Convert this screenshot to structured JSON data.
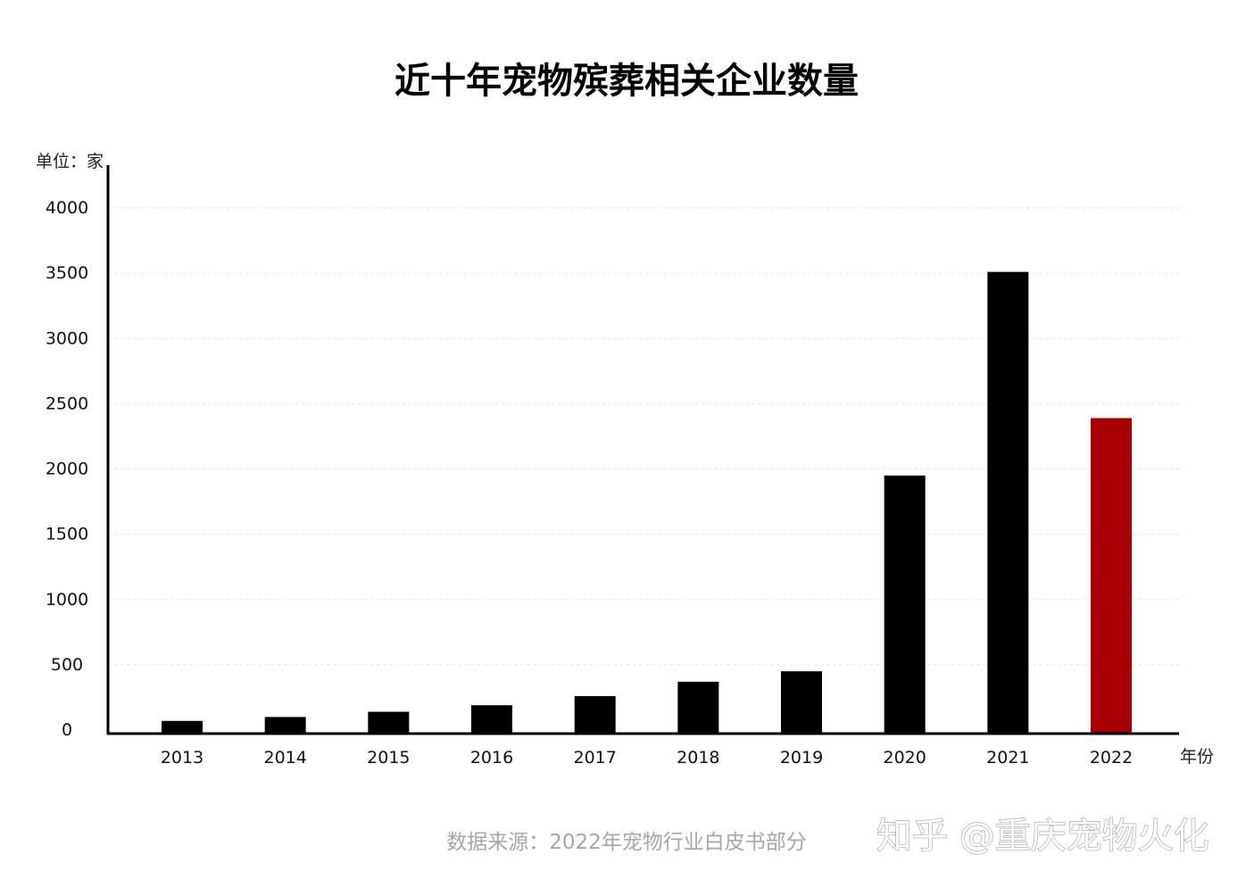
{
  "source": "数据来源：2022年宠物行业白皮书部分",
  "watermark": "知乎 @重庆宠物火化",
  "chart_data": {
    "type": "bar",
    "title": "近十年宠物殡葬相关企业数量",
    "xlabel": "年份",
    "ylabel": "单位：家",
    "categories": [
      "2013",
      "2014",
      "2015",
      "2016",
      "2017",
      "2018",
      "2019",
      "2020",
      "2021",
      "2022"
    ],
    "values": [
      70,
      100,
      140,
      190,
      260,
      370,
      450,
      1950,
      3510,
      2390
    ],
    "ylim": [
      0,
      4000
    ],
    "yticks": [
      0,
      500,
      1000,
      1500,
      2000,
      2500,
      3000,
      3500,
      4000
    ],
    "grid": true,
    "legend": "none",
    "bar_color": "#000000",
    "highlight": {
      "category": "2022",
      "color": "#a80000"
    },
    "gridline_color": "#e6e6e6"
  }
}
